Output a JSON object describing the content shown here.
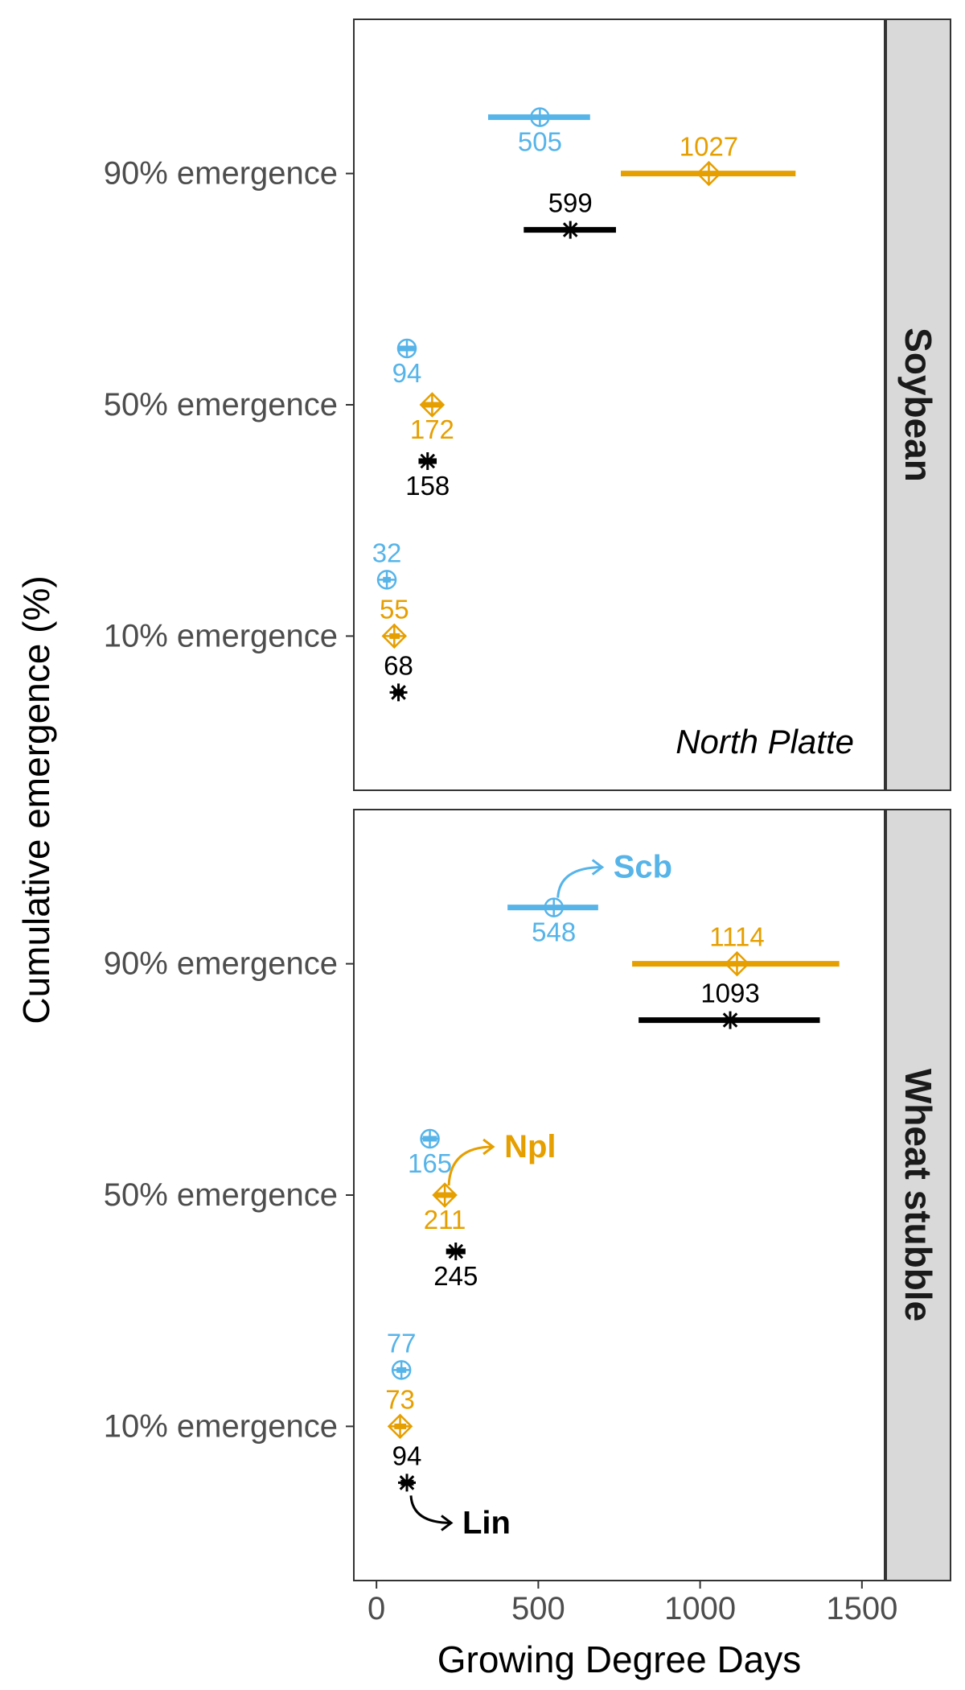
{
  "chart_data": {
    "type": "scatter",
    "xlabel": "Growing Degree Days",
    "ylabel": "Cumulative emergence (%)",
    "xlim": [
      -70,
      1570
    ],
    "x_ticks": [
      0,
      500,
      1000,
      1500
    ],
    "y_categories": [
      "10% emergence",
      "50% emergence",
      "90% emergence"
    ],
    "grid": false,
    "annotation": "North Platte",
    "colors": {
      "Scb": "#56B4E9",
      "Npl": "#E69F00",
      "Lin": "#000000"
    },
    "location_labels": [
      "Scb",
      "Npl",
      "Lin"
    ],
    "panels": [
      {
        "strip": "Soybean",
        "series": [
          {
            "name": "Scb",
            "points": [
              {
                "y": "10% emergence",
                "x": 32,
                "lo": 20,
                "hi": 44,
                "label": "32"
              },
              {
                "y": "50% emergence",
                "x": 94,
                "lo": 70,
                "hi": 118,
                "label": "94"
              },
              {
                "y": "90% emergence",
                "x": 505,
                "lo": 345,
                "hi": 660,
                "label": "505"
              }
            ]
          },
          {
            "name": "Npl",
            "points": [
              {
                "y": "10% emergence",
                "x": 55,
                "lo": 40,
                "hi": 72,
                "label": "55"
              },
              {
                "y": "50% emergence",
                "x": 172,
                "lo": 145,
                "hi": 200,
                "label": "172"
              },
              {
                "y": "90% emergence",
                "x": 1027,
                "lo": 755,
                "hi": 1295,
                "label": "1027"
              }
            ]
          },
          {
            "name": "Lin",
            "points": [
              {
                "y": "10% emergence",
                "x": 68,
                "lo": 52,
                "hi": 84,
                "label": "68"
              },
              {
                "y": "50% emergence",
                "x": 158,
                "lo": 130,
                "hi": 186,
                "label": "158"
              },
              {
                "y": "90% emergence",
                "x": 599,
                "lo": 455,
                "hi": 740,
                "label": "599"
              }
            ]
          }
        ]
      },
      {
        "strip": "Wheat stubble",
        "series": [
          {
            "name": "Scb",
            "points": [
              {
                "y": "10% emergence",
                "x": 77,
                "lo": 62,
                "hi": 92,
                "label": "77"
              },
              {
                "y": "50% emergence",
                "x": 165,
                "lo": 143,
                "hi": 187,
                "label": "165"
              },
              {
                "y": "90% emergence",
                "x": 548,
                "lo": 405,
                "hi": 685,
                "label": "548"
              }
            ]
          },
          {
            "name": "Npl",
            "points": [
              {
                "y": "10% emergence",
                "x": 73,
                "lo": 55,
                "hi": 92,
                "label": "73"
              },
              {
                "y": "50% emergence",
                "x": 211,
                "lo": 180,
                "hi": 242,
                "label": "211"
              },
              {
                "y": "90% emergence",
                "x": 1114,
                "lo": 790,
                "hi": 1430,
                "label": "1114"
              }
            ]
          },
          {
            "name": "Lin",
            "points": [
              {
                "y": "10% emergence",
                "x": 94,
                "lo": 75,
                "hi": 115,
                "label": "94"
              },
              {
                "y": "50% emergence",
                "x": 245,
                "lo": 215,
                "hi": 275,
                "label": "245"
              },
              {
                "y": "90% emergence",
                "x": 1093,
                "lo": 810,
                "hi": 1370,
                "label": "1093"
              }
            ]
          }
        ]
      }
    ]
  }
}
